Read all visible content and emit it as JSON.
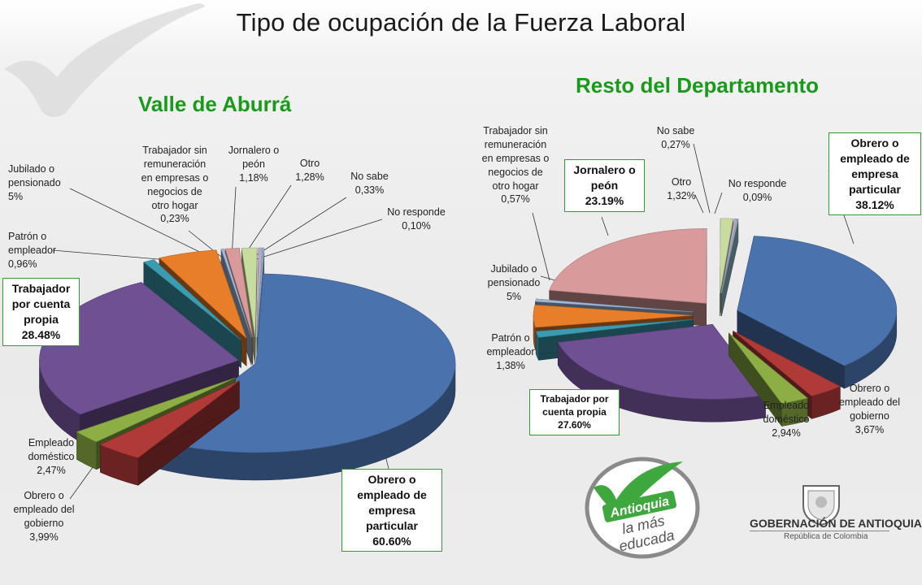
{
  "title": "Tipo de ocupación de la Fuerza Laboral",
  "colors": {
    "obrero_empresa": "#4a72ad",
    "obrero_gobierno": "#b03a38",
    "empleado_domestico": "#8cae45",
    "cuenta_propia": "#6f5093",
    "patron": "#3b9bb0",
    "jubilado": "#e87d2a",
    "sin_remuneracion": "#a0b8da",
    "jornalero": "#d89a9a",
    "otro": "#c8dca0",
    "no_sabe": "#b9a8cc",
    "no_responde": "#9ecfdc",
    "title_green": "#1a9a1a"
  },
  "chart_data": [
    {
      "type": "pie",
      "title": "Valle de Aburrá",
      "slices": [
        {
          "name": "Obrero o empleado de empresa particular",
          "value": 60.6,
          "label": [
            "Obrero o",
            "empleado de",
            "empresa",
            "particular",
            "60.60%"
          ],
          "boxed": true,
          "color_key": "obrero_empresa"
        },
        {
          "name": "Obrero o empleado del gobierno",
          "value": 3.99,
          "label": [
            "Obrero o",
            "empleado del",
            "gobierno",
            "3,99%"
          ],
          "color_key": "obrero_gobierno"
        },
        {
          "name": "Empleado doméstico",
          "value": 2.47,
          "label": [
            "Empleado",
            "doméstico",
            "2,47%"
          ],
          "color_key": "empleado_domestico"
        },
        {
          "name": "Trabajador por cuenta propia",
          "value": 28.48,
          "label": [
            "Trabajador",
            "por cuenta",
            "propia",
            "28.48%"
          ],
          "boxed": true,
          "color_key": "cuenta_propia"
        },
        {
          "name": "Patrón o empleador",
          "value": 0.96,
          "label": [
            "Patrón o",
            "empleador",
            "0,96%"
          ],
          "color_key": "patron"
        },
        {
          "name": "Jubilado o pensionado",
          "value": 5,
          "label": [
            "Jubilado o",
            "pensionado",
            "5%"
          ],
          "color_key": "jubilado"
        },
        {
          "name": "Trabajador sin remuneración en empresas o negocios de otro hogar",
          "value": 0.23,
          "label": [
            "Trabajador sin",
            "remuneración",
            "en empresas o",
            "negocios de",
            "otro hogar",
            "0,23%"
          ],
          "color_key": "sin_remuneracion"
        },
        {
          "name": "Jornalero o peón",
          "value": 1.18,
          "label": [
            "Jornalero o",
            "peón",
            "1,18%"
          ],
          "color_key": "jornalero"
        },
        {
          "name": "Otro",
          "value": 1.28,
          "label": [
            "Otro",
            "1,28%"
          ],
          "color_key": "otro"
        },
        {
          "name": "No sabe",
          "value": 0.33,
          "label": [
            "No sabe",
            "0,33%"
          ],
          "color_key": "no_sabe"
        },
        {
          "name": "No responde",
          "value": 0.1,
          "label": [
            "No responde",
            "0,10%"
          ],
          "color_key": "no_responde"
        }
      ]
    },
    {
      "type": "pie",
      "title": "Resto del Departamento",
      "slices": [
        {
          "name": "Obrero o empleado de empresa particular",
          "value": 38.12,
          "label": [
            "Obrero o",
            "empleado de",
            "empresa",
            "particular",
            "38.12%"
          ],
          "boxed": true,
          "color_key": "obrero_empresa"
        },
        {
          "name": "Obrero o empleado del gobierno",
          "value": 3.67,
          "label": [
            "Obrero o",
            "empleado del",
            "gobierno",
            "3,67%"
          ],
          "color_key": "obrero_gobierno"
        },
        {
          "name": "Empleado doméstico",
          "value": 2.94,
          "label": [
            "Empleado",
            "doméstico",
            "2,94%"
          ],
          "color_key": "empleado_domestico"
        },
        {
          "name": "Trabajador por cuenta propia",
          "value": 27.6,
          "label": [
            "Trabajador por",
            "cuenta propia",
            "27.60%"
          ],
          "boxed": true,
          "color_key": "cuenta_propia"
        },
        {
          "name": "Patrón o empleador",
          "value": 1.38,
          "label": [
            "Patrón o",
            "empleador",
            "1,38%"
          ],
          "color_key": "patron"
        },
        {
          "name": "Jubilado o pensionado",
          "value": 5,
          "label": [
            "Jubilado o",
            "pensionado",
            "5%"
          ],
          "color_key": "jubilado"
        },
        {
          "name": "Trabajador sin remuneración en empresas o negocios de otro hogar",
          "value": 0.57,
          "label": [
            "Trabajador sin",
            "remuneración",
            "en empresas o",
            "negocios de",
            "otro hogar",
            "0,57%"
          ],
          "color_key": "sin_remuneracion"
        },
        {
          "name": "Jornalero o peón",
          "value": 23.19,
          "label": [
            "Jornalero o",
            "peón",
            "23.19%"
          ],
          "boxed": true,
          "color_key": "jornalero"
        },
        {
          "name": "Otro",
          "value": 1.32,
          "label": [
            "Otro",
            "1,32%"
          ],
          "color_key": "otro"
        },
        {
          "name": "No sabe",
          "value": 0.27,
          "label": [
            "No sabe",
            "0,27%"
          ],
          "color_key": "no_sabe"
        },
        {
          "name": "No responde",
          "value": 0.09,
          "label": [
            "No responde",
            "0,09%"
          ],
          "color_key": "no_responde"
        }
      ]
    }
  ],
  "logos": {
    "antioquia_badge": [
      "Antioquia",
      "la más",
      "educada"
    ],
    "gobernacion": "GOBERNACIÓN DE ANTIOQUIA",
    "gobernacion_sub": "República de Colombia"
  }
}
